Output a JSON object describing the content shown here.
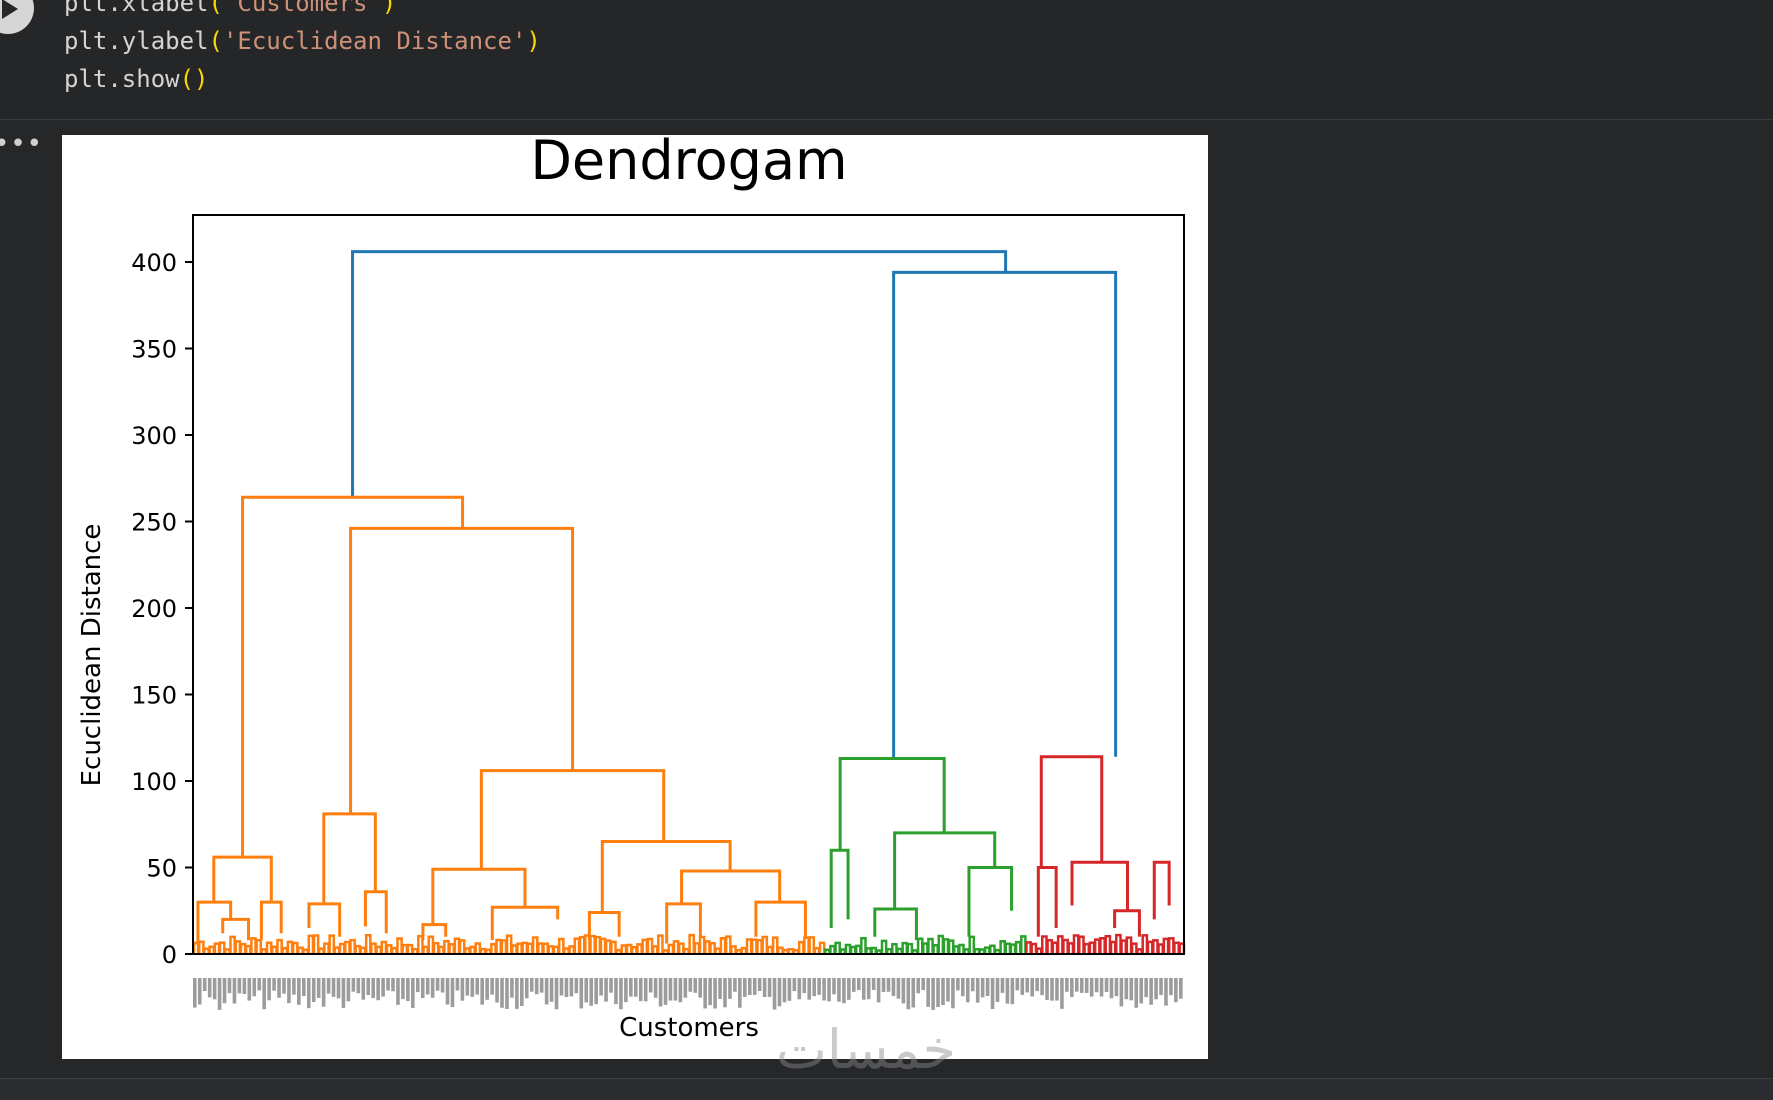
{
  "code": {
    "lines": [
      {
        "func": "plt.xlabel",
        "open": "(",
        "arg": "'Customers'",
        "close": ")"
      },
      {
        "func": "plt.ylabel",
        "open": "(",
        "arg": "'Ecuclidean Distance'",
        "close": ")"
      },
      {
        "func": "plt.show",
        "open": "(",
        "arg": "",
        "close": ")"
      }
    ]
  },
  "output": {
    "more_label": "•••"
  },
  "watermark": "خمسات",
  "colors": {
    "blue": "#1f77b4",
    "orange": "#ff7f0e",
    "green": "#2ca02c",
    "red": "#d62728"
  },
  "chart_data": {
    "type": "dendrogram",
    "title": "Dendrogam",
    "xlabel": "Customers",
    "ylabel": "Ecuclidean Distance",
    "ylim": [
      0,
      420
    ],
    "yticks": [
      0,
      50,
      100,
      150,
      200,
      250,
      300,
      350,
      400
    ],
    "clusters": [
      {
        "color": "orange",
        "leaf_span": [
          0,
          0.637
        ],
        "merge_height": 264
      },
      {
        "color": "green",
        "leaf_span": [
          0.637,
          0.84
        ],
        "merge_height": 113
      },
      {
        "color": "red",
        "leaf_span": [
          0.84,
          1.0
        ],
        "merge_height": 114
      }
    ],
    "links": [
      {
        "color": "blue",
        "x": [
          0.161,
          0.161,
          0.82,
          0.82
        ],
        "y": [
          264,
          406,
          406,
          394
        ]
      },
      {
        "color": "blue",
        "x": [
          0.707,
          0.707,
          0.931,
          0.931
        ],
        "y": [
          113,
          394,
          394,
          114
        ]
      },
      {
        "color": "orange",
        "x": [
          0.05,
          0.05,
          0.272,
          0.272
        ],
        "y": [
          56,
          264,
          264,
          246
        ]
      },
      {
        "color": "orange",
        "x": [
          0.159,
          0.159,
          0.383,
          0.383
        ],
        "y": [
          81,
          246,
          246,
          106
        ]
      },
      {
        "color": "orange",
        "x": [
          0.291,
          0.291,
          0.475,
          0.475
        ],
        "y": [
          49,
          106,
          106,
          65
        ]
      },
      {
        "color": "orange",
        "x": [
          0.021,
          0.021,
          0.079,
          0.079
        ],
        "y": [
          30,
          56,
          56,
          30
        ]
      },
      {
        "color": "orange",
        "x": [
          0.132,
          0.132,
          0.184,
          0.184
        ],
        "y": [
          29,
          81,
          81,
          36
        ]
      },
      {
        "color": "orange",
        "x": [
          0.242,
          0.242,
          0.335,
          0.335
        ],
        "y": [
          17,
          49,
          49,
          27
        ]
      },
      {
        "color": "orange",
        "x": [
          0.413,
          0.413,
          0.542,
          0.542
        ],
        "y": [
          24,
          65,
          65,
          48
        ]
      },
      {
        "color": "orange",
        "x": [
          0.493,
          0.493,
          0.592,
          0.592
        ],
        "y": [
          29,
          48,
          48,
          30
        ]
      },
      {
        "color": "orange",
        "x": [
          0.005,
          0.005,
          0.038,
          0.038
        ],
        "y": [
          5,
          30,
          30,
          20
        ]
      },
      {
        "color": "orange",
        "x": [
          0.03,
          0.03,
          0.056,
          0.056
        ],
        "y": [
          12,
          20,
          20,
          8
        ]
      },
      {
        "color": "orange",
        "x": [
          0.069,
          0.069,
          0.089,
          0.089
        ],
        "y": [
          8,
          30,
          30,
          12
        ]
      },
      {
        "color": "orange",
        "x": [
          0.117,
          0.117,
          0.148,
          0.148
        ],
        "y": [
          15,
          29,
          29,
          10
        ]
      },
      {
        "color": "orange",
        "x": [
          0.174,
          0.174,
          0.195,
          0.195
        ],
        "y": [
          16,
          36,
          36,
          12
        ]
      },
      {
        "color": "orange",
        "x": [
          0.232,
          0.232,
          0.255,
          0.255
        ],
        "y": [
          8,
          17,
          17,
          10
        ]
      },
      {
        "color": "orange",
        "x": [
          0.302,
          0.302,
          0.368,
          0.368
        ],
        "y": [
          8,
          27,
          27,
          20
        ]
      },
      {
        "color": "orange",
        "x": [
          0.4,
          0.4,
          0.43,
          0.43
        ],
        "y": [
          8,
          24,
          24,
          10
        ]
      },
      {
        "color": "orange",
        "x": [
          0.478,
          0.478,
          0.512,
          0.512
        ],
        "y": [
          6,
          29,
          29,
          10
        ]
      },
      {
        "color": "orange",
        "x": [
          0.568,
          0.568,
          0.618,
          0.618
        ],
        "y": [
          10,
          30,
          30,
          9
        ]
      },
      {
        "color": "green",
        "x": [
          0.653,
          0.653,
          0.758,
          0.758
        ],
        "y": [
          60,
          113,
          113,
          70
        ]
      },
      {
        "color": "green",
        "x": [
          0.708,
          0.708,
          0.809,
          0.809
        ],
        "y": [
          26,
          70,
          70,
          50
        ]
      },
      {
        "color": "green",
        "x": [
          0.783,
          0.783,
          0.826,
          0.826
        ],
        "y": [
          10,
          50,
          50,
          25
        ]
      },
      {
        "color": "green",
        "x": [
          0.644,
          0.644,
          0.661,
          0.661
        ],
        "y": [
          15,
          60,
          60,
          20
        ]
      },
      {
        "color": "green",
        "x": [
          0.688,
          0.688,
          0.73,
          0.73
        ],
        "y": [
          10,
          26,
          26,
          8
        ]
      },
      {
        "color": "red",
        "x": [
          0.856,
          0.856,
          0.917,
          0.917
        ],
        "y": [
          50,
          114,
          114,
          53
        ]
      },
      {
        "color": "red",
        "x": [
          0.887,
          0.887,
          0.943,
          0.943
        ],
        "y": [
          28,
          53,
          53,
          25
        ]
      },
      {
        "color": "red",
        "x": [
          0.853,
          0.853,
          0.871,
          0.871
        ],
        "y": [
          10,
          50,
          50,
          15
        ]
      },
      {
        "color": "red",
        "x": [
          0.93,
          0.93,
          0.955,
          0.955
        ],
        "y": [
          15,
          25,
          25,
          10
        ]
      },
      {
        "color": "red",
        "x": [
          0.97,
          0.97,
          0.985,
          0.985
        ],
        "y": [
          20,
          53,
          53,
          28
        ]
      }
    ]
  }
}
